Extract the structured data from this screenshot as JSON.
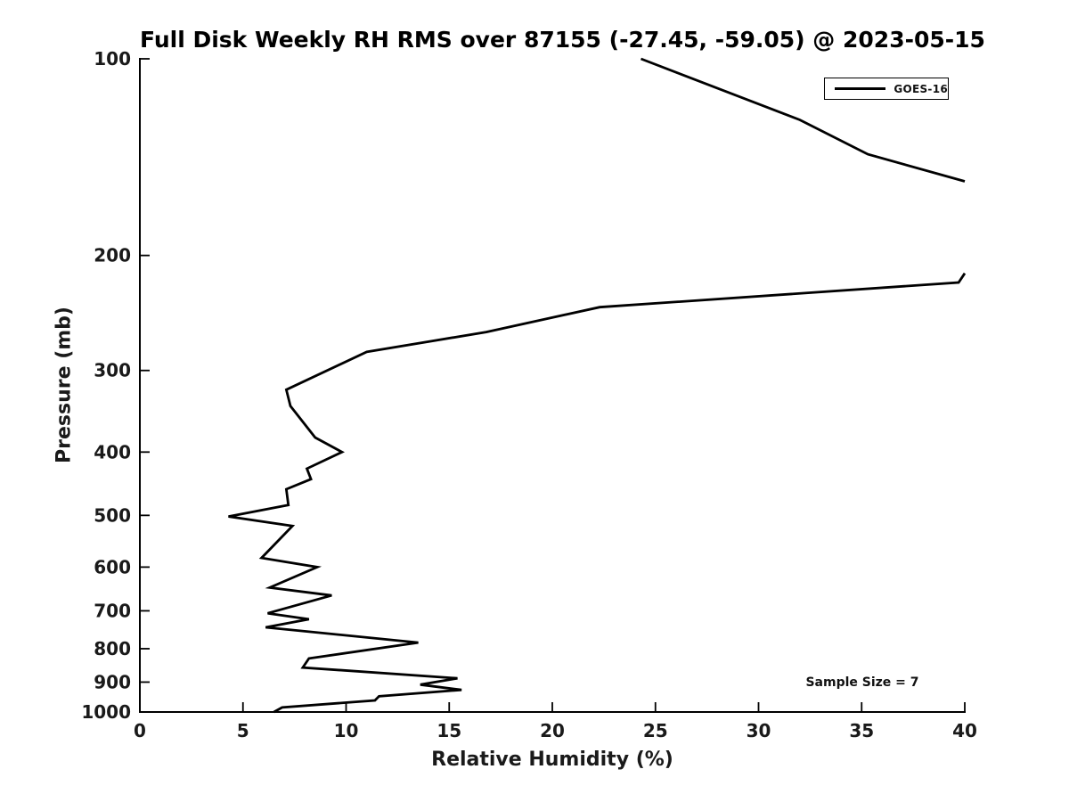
{
  "figure": {
    "background": "#ffffff",
    "foreground": "#000000"
  },
  "chart_data": {
    "type": "line",
    "title": "Full Disk Weekly RH RMS over 87155 (-27.45, -59.05) @ 2023-05-15",
    "xlabel": "Relative Humidity (%)",
    "ylabel": "Pressure (mb)",
    "xlim": [
      0,
      40
    ],
    "ylim": [
      100,
      1000
    ],
    "yscale": "log",
    "y_axis_inverted_pressure": true,
    "grid": false,
    "xticks": [
      0,
      5,
      10,
      15,
      20,
      25,
      30,
      35,
      40
    ],
    "yticks": [
      100,
      200,
      300,
      400,
      500,
      600,
      700,
      800,
      900,
      1000
    ],
    "legend": {
      "position": "upper right",
      "entries": [
        "GOES-16"
      ]
    },
    "annotation": "Sample Size = 7",
    "series": [
      {
        "name": "GOES-16",
        "color": "#000000",
        "line_width": 2.8,
        "note": "single profile clipped at x=40 between ~155mb and ~215mb; points are [RH %, Pressure mb]",
        "segments": [
          [
            [
              24.3,
              100
            ],
            [
              32.0,
              124
            ],
            [
              35.3,
              140
            ],
            [
              40.0,
              154
            ]
          ],
          [
            [
              40.0,
              213
            ],
            [
              39.7,
              220
            ],
            [
              22.3,
              240
            ],
            [
              16.8,
              262
            ],
            [
              11.0,
              281
            ],
            [
              7.1,
              321
            ],
            [
              7.3,
              340
            ],
            [
              8.5,
              380
            ],
            [
              9.8,
              400
            ],
            [
              8.1,
              424
            ],
            [
              8.3,
              440
            ],
            [
              7.1,
              456
            ],
            [
              7.2,
              482
            ],
            [
              4.3,
              502
            ],
            [
              7.4,
              519
            ],
            [
              5.9,
              581
            ],
            [
              8.6,
              600
            ],
            [
              6.3,
              645
            ],
            [
              9.3,
              663
            ],
            [
              6.2,
              706
            ],
            [
              8.2,
              721
            ],
            [
              6.1,
              742
            ],
            [
              13.5,
              783
            ],
            [
              8.2,
              828
            ],
            [
              7.9,
              855
            ],
            [
              15.4,
              888
            ],
            [
              13.6,
              908
            ],
            [
              15.6,
              925
            ],
            [
              11.6,
              946
            ],
            [
              11.4,
              960
            ],
            [
              6.9,
              984
            ],
            [
              6.5,
              1000
            ]
          ]
        ]
      }
    ]
  }
}
